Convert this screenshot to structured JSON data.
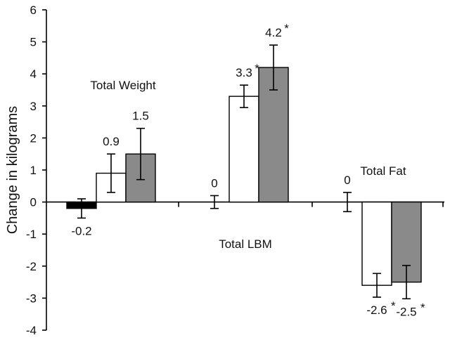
{
  "chart_data": {
    "type": "bar",
    "title": "",
    "xlabel": "",
    "ylabel": "Change in kilograms",
    "ylim": [
      -4,
      6
    ],
    "yticks": [
      -4,
      -3,
      -2,
      -1,
      0,
      1,
      2,
      3,
      4,
      5,
      6
    ],
    "grid": false,
    "legend": "none",
    "colors": {
      "black_bar": "#000000",
      "white_bar": "#ffffff",
      "gray_bar": "#8a8a8a",
      "axis": "#000000"
    },
    "groups": [
      {
        "name": "Total Weight",
        "bars": [
          {
            "value": -0.2,
            "error": 0.3,
            "label": "-0.2",
            "significant": false,
            "fill": "black"
          },
          {
            "value": 0.9,
            "error": 0.6,
            "label": "0.9",
            "significant": false,
            "fill": "white"
          },
          {
            "value": 1.5,
            "error": 0.8,
            "label": "1.5",
            "significant": false,
            "fill": "gray"
          }
        ]
      },
      {
        "name": "Total LBM",
        "bars": [
          {
            "value": 0,
            "error": 0.2,
            "label": "0",
            "significant": false,
            "fill": "white"
          },
          {
            "value": 3.3,
            "error": 0.35,
            "label": "3.3",
            "significant": true,
            "fill": "white"
          },
          {
            "value": 4.2,
            "error": 0.7,
            "label": "4.2",
            "significant": true,
            "fill": "gray"
          }
        ]
      },
      {
        "name": "Total Fat",
        "bars": [
          {
            "value": 0,
            "error": 0.3,
            "label": "0",
            "significant": false,
            "fill": "white"
          },
          {
            "value": -2.6,
            "error": 0.37,
            "label": "-2.6",
            "significant": true,
            "fill": "white"
          },
          {
            "value": -2.5,
            "error": 0.52,
            "label": "-2.5",
            "significant": true,
            "fill": "gray"
          }
        ]
      }
    ],
    "significance_marker": "*"
  }
}
